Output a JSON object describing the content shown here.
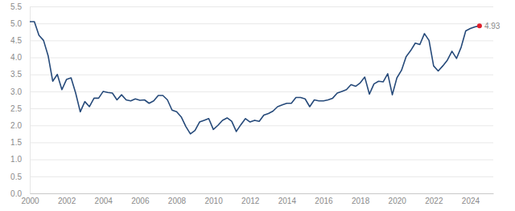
{
  "chart_data": {
    "type": "line",
    "color": "#264a7a",
    "grid": true,
    "marker": "none",
    "line_style": "solid",
    "x": [
      2000,
      2000.25,
      2000.5,
      2000.75,
      2001,
      2001.25,
      2001.5,
      2001.75,
      2002,
      2002.25,
      2002.5,
      2002.75,
      2003,
      2003.25,
      2003.5,
      2003.75,
      2004,
      2004.25,
      2004.5,
      2004.75,
      2005,
      2005.25,
      2005.5,
      2005.75,
      2006,
      2006.25,
      2006.5,
      2006.75,
      2007,
      2007.25,
      2007.5,
      2007.75,
      2008,
      2008.25,
      2008.5,
      2008.75,
      2009,
      2009.25,
      2009.5,
      2009.75,
      2010,
      2010.25,
      2010.5,
      2010.75,
      2011,
      2011.25,
      2011.5,
      2011.75,
      2012,
      2012.25,
      2012.5,
      2012.75,
      2013,
      2013.25,
      2013.5,
      2013.75,
      2014,
      2014.25,
      2014.5,
      2014.75,
      2015,
      2015.25,
      2015.5,
      2015.75,
      2016,
      2016.25,
      2016.5,
      2016.75,
      2017,
      2017.25,
      2017.5,
      2017.75,
      2018,
      2018.25,
      2018.5,
      2018.75,
      2019,
      2019.25,
      2019.5,
      2019.75,
      2020,
      2020.25,
      2020.5,
      2020.75,
      2021,
      2021.25,
      2021.5,
      2021.75,
      2022,
      2022.25,
      2022.5,
      2022.75,
      2023,
      2023.25,
      2023.5,
      2023.75,
      2024,
      2024.25,
      2024.5
    ],
    "values": [
      5.05,
      5.05,
      4.65,
      4.5,
      4.05,
      3.3,
      3.5,
      3.05,
      3.35,
      3.4,
      2.95,
      2.4,
      2.7,
      2.55,
      2.8,
      2.8,
      3.0,
      2.97,
      2.95,
      2.75,
      2.9,
      2.75,
      2.72,
      2.78,
      2.74,
      2.75,
      2.65,
      2.72,
      2.88,
      2.88,
      2.75,
      2.45,
      2.4,
      2.25,
      1.97,
      1.75,
      1.85,
      2.1,
      2.15,
      2.2,
      1.88,
      2.0,
      2.15,
      2.22,
      2.12,
      1.82,
      2.02,
      2.2,
      2.1,
      2.15,
      2.12,
      2.3,
      2.35,
      2.42,
      2.55,
      2.6,
      2.65,
      2.65,
      2.82,
      2.82,
      2.78,
      2.55,
      2.75,
      2.72,
      2.72,
      2.75,
      2.8,
      2.95,
      3.0,
      3.05,
      3.2,
      3.15,
      3.25,
      3.42,
      2.92,
      3.22,
      3.3,
      3.28,
      3.52,
      2.9,
      3.4,
      3.62,
      4.02,
      4.2,
      4.42,
      4.38,
      4.7,
      4.5,
      3.75,
      3.6,
      3.75,
      3.92,
      4.18,
      3.97,
      4.3,
      4.78,
      4.85,
      4.9,
      4.93
    ],
    "xlim": [
      2000,
      2025.25
    ],
    "xticks": [
      2000,
      2002,
      2004,
      2006,
      2008,
      2010,
      2012,
      2014,
      2016,
      2018,
      2020,
      2022,
      2024
    ],
    "ylim": [
      0,
      5.5
    ],
    "yticks": [
      {
        "value": 0,
        "label": "0.0"
      },
      0.5,
      {
        "value": 1,
        "label": "1.0"
      },
      1.5,
      {
        "value": 2,
        "label": "2.0"
      },
      2.5,
      {
        "value": 3,
        "label": "3.0"
      },
      3.5,
      {
        "value": 4,
        "label": "4.0"
      },
      4.5,
      {
        "value": 5,
        "label": "5.0"
      },
      5.5
    ],
    "annotations": [
      {
        "text": "4.93",
        "x": 2024.5,
        "y": 4.93,
        "color": "#e0202c"
      }
    ]
  }
}
